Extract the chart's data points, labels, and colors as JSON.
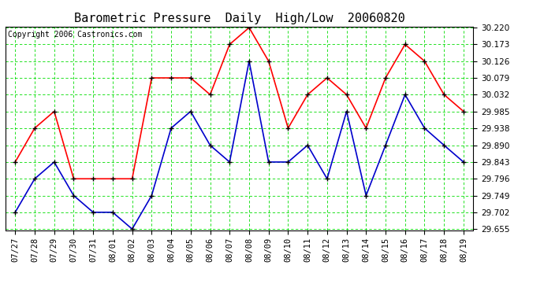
{
  "title": "Barometric Pressure  Daily  High/Low  20060820",
  "copyright": "Copyright 2006 Castronics.com",
  "x_labels": [
    "07/27",
    "07/28",
    "07/29",
    "07/30",
    "07/31",
    "08/01",
    "08/02",
    "08/03",
    "08/04",
    "08/05",
    "08/06",
    "08/07",
    "08/08",
    "08/09",
    "08/10",
    "08/11",
    "08/12",
    "08/13",
    "08/14",
    "08/15",
    "08/16",
    "08/17",
    "08/18",
    "08/19"
  ],
  "high_values": [
    29.843,
    29.938,
    29.985,
    29.796,
    29.796,
    29.796,
    29.796,
    30.079,
    30.079,
    30.079,
    30.032,
    30.173,
    30.22,
    30.126,
    29.938,
    30.032,
    30.079,
    30.032,
    29.938,
    30.079,
    30.173,
    30.126,
    30.032,
    29.985
  ],
  "low_values": [
    29.702,
    29.796,
    29.843,
    29.749,
    29.702,
    29.702,
    29.655,
    29.749,
    29.938,
    29.985,
    29.89,
    29.843,
    30.126,
    29.843,
    29.843,
    29.89,
    29.796,
    29.985,
    29.749,
    29.89,
    30.032,
    29.938,
    29.89,
    29.843
  ],
  "high_color": "#ff0000",
  "low_color": "#0000cc",
  "marker_color": "#000000",
  "grid_color": "#00dd00",
  "bg_color": "#ffffff",
  "plot_bg_color": "#ffffff",
  "y_min": 29.655,
  "y_max": 30.22,
  "y_ticks": [
    29.655,
    29.702,
    29.749,
    29.796,
    29.843,
    29.89,
    29.938,
    29.985,
    30.032,
    30.079,
    30.126,
    30.173,
    30.22
  ],
  "title_fontsize": 11,
  "tick_fontsize": 7.5,
  "copyright_fontsize": 7.0
}
